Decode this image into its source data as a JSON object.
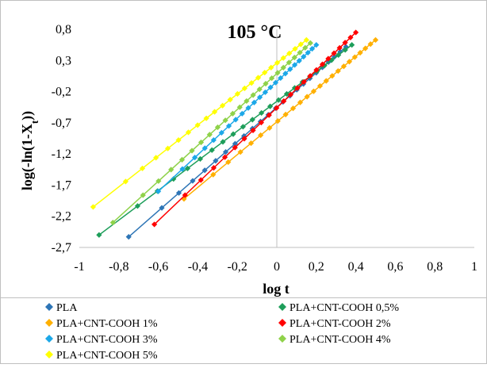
{
  "chart_data": {
    "type": "scatter",
    "title": "105 °C",
    "xlabel": "log t",
    "ylabel_main": "log(-ln(1-X",
    "ylabel_sub": "t",
    "ylabel_end": "))",
    "xlim": [
      -1,
      1
    ],
    "ylim": [
      -2.7,
      0.8
    ],
    "x_ticks": [
      -1,
      -0.8,
      -0.6,
      -0.4,
      -0.2,
      0,
      0.2,
      0.4,
      0.6,
      0.8,
      1
    ],
    "x_tick_labels": [
      "-1",
      "-0,8",
      "-0,6",
      "-0,4",
      "-0,2",
      "0",
      "0,2",
      "0,4",
      "0,6",
      "0,8",
      "1"
    ],
    "y_ticks": [
      0.8,
      0.3,
      -0.2,
      -0.7,
      -1.2,
      -1.7,
      -2.2,
      -2.7
    ],
    "y_tick_labels": [
      "0,8",
      "0,3",
      "-0,2",
      "-0,7",
      "-1,2",
      "-1,7",
      "-2,2",
      "-2,7"
    ],
    "grid": false,
    "legend_position": "bottom",
    "series": [
      {
        "name": "PLA",
        "color": "#2E75B6",
        "marker": "diamond",
        "start": [
          -0.75,
          -2.53
        ],
        "end": [
          0.35,
          0.52
        ]
      },
      {
        "name": "PLA+CNT-COOH 0,5%",
        "color": "#1E9E5A",
        "marker": "diamond",
        "start": [
          -0.9,
          -2.5
        ],
        "end": [
          0.38,
          0.55
        ]
      },
      {
        "name": "PLA+CNT-COOH 1%",
        "color": "#FFB000",
        "marker": "diamond",
        "start": [
          -0.47,
          -1.92
        ],
        "end": [
          0.5,
          0.63
        ]
      },
      {
        "name": "PLA+CNT-COOH 2%",
        "color": "#FF0000",
        "marker": "diamond",
        "start": [
          -0.62,
          -2.33
        ],
        "end": [
          0.4,
          0.75
        ]
      },
      {
        "name": "PLA+CNT-COOH 3%",
        "color": "#1CA8E8",
        "marker": "diamond",
        "start": [
          -0.6,
          -1.8
        ],
        "end": [
          0.2,
          0.55
        ]
      },
      {
        "name": "PLA+CNT-COOH 4%",
        "color": "#8FD24A",
        "marker": "diamond",
        "start": [
          -0.83,
          -2.3
        ],
        "end": [
          0.17,
          0.58
        ]
      },
      {
        "name": "PLA+CNT-COOH 5%",
        "color": "#FFFF00",
        "marker": "diamond",
        "start": [
          -0.93,
          -2.05
        ],
        "end": [
          0.15,
          0.63
        ]
      }
    ]
  }
}
